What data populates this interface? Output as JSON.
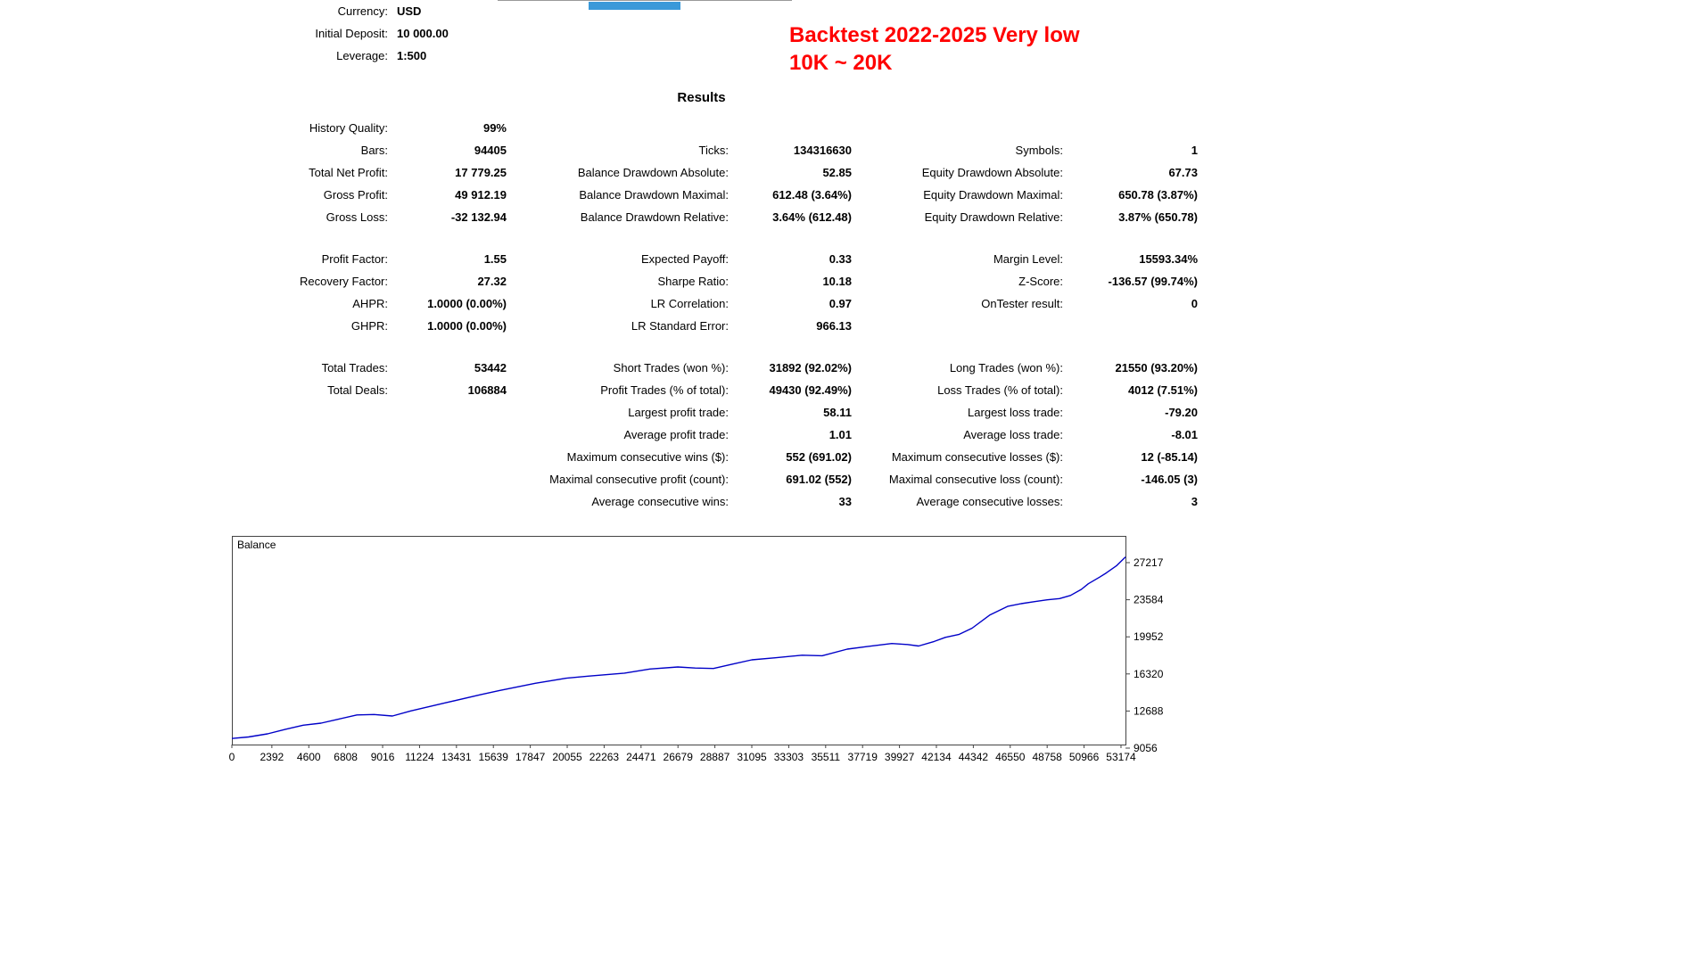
{
  "top_partial_tab": {
    "color": "#3a99d9"
  },
  "annotation": {
    "line1": "Backtest 2022-2025 Very low",
    "line2": "10K ~ 20K",
    "color": "#ff0000"
  },
  "account": {
    "rows": [
      {
        "label": "Currency:",
        "value": "USD"
      },
      {
        "label": "Initial Deposit:",
        "value": "10 000.00"
      },
      {
        "label": "Leverage:",
        "value": "1:500"
      }
    ]
  },
  "results": {
    "title": "Results",
    "rows": [
      [
        "History Quality:",
        "99%",
        "",
        "",
        "",
        ""
      ],
      [
        "Bars:",
        "94405",
        "Ticks:",
        "134316630",
        "Symbols:",
        "1"
      ],
      [
        "Total Net Profit:",
        "17 779.25",
        "Balance Drawdown Absolute:",
        "52.85",
        "Equity Drawdown Absolute:",
        "67.73"
      ],
      [
        "Gross Profit:",
        "49 912.19",
        "Balance Drawdown Maximal:",
        "612.48 (3.64%)",
        "Equity Drawdown Maximal:",
        "650.78 (3.87%)"
      ],
      [
        "Gross Loss:",
        "-32 132.94",
        "Balance Drawdown Relative:",
        "3.64% (612.48)",
        "Equity Drawdown Relative:",
        "3.87% (650.78)"
      ],
      "spacer",
      [
        "Profit Factor:",
        "1.55",
        "Expected Payoff:",
        "0.33",
        "Margin Level:",
        "15593.34%"
      ],
      [
        "Recovery Factor:",
        "27.32",
        "Sharpe Ratio:",
        "10.18",
        "Z-Score:",
        "-136.57 (99.74%)"
      ],
      [
        "AHPR:",
        "1.0000 (0.00%)",
        "LR Correlation:",
        "0.97",
        "OnTester result:",
        "0"
      ],
      [
        "GHPR:",
        "1.0000 (0.00%)",
        "LR Standard Error:",
        "966.13",
        "",
        ""
      ],
      "spacer",
      [
        "Total Trades:",
        "53442",
        "Short Trades (won %):",
        "31892 (92.02%)",
        "Long Trades (won %):",
        "21550 (93.20%)"
      ],
      [
        "Total Deals:",
        "106884",
        "Profit Trades (% of total):",
        "49430 (92.49%)",
        "Loss Trades (% of total):",
        "4012 (7.51%)"
      ],
      [
        "",
        "",
        "Largest profit trade:",
        "58.11",
        "Largest loss trade:",
        "-79.20"
      ],
      [
        "",
        "",
        "Average profit trade:",
        "1.01",
        "Average loss trade:",
        "-8.01"
      ],
      [
        "",
        "",
        "Maximum consecutive wins ($):",
        "552 (691.02)",
        "Maximum consecutive losses ($):",
        "12 (-85.14)"
      ],
      [
        "",
        "",
        "Maximal consecutive profit (count):",
        "691.02 (552)",
        "Maximal consecutive loss (count):",
        "-146.05 (3)"
      ],
      [
        "",
        "",
        "Average consecutive wins:",
        "33",
        "Average consecutive losses:",
        "3"
      ]
    ]
  },
  "chart_data": {
    "type": "line",
    "title": "Balance",
    "legend": "Balance",
    "xlim": [
      0,
      53442
    ],
    "y_ticks": [
      27217,
      23584,
      19952,
      16320,
      12688,
      9056
    ],
    "x_ticks": [
      0,
      2392,
      4600,
      6808,
      9016,
      11224,
      13431,
      15639,
      17847,
      20055,
      22263,
      24471,
      26679,
      28887,
      31095,
      33303,
      35511,
      37719,
      39927,
      42134,
      44342,
      46550,
      48758,
      50966,
      53174
    ],
    "ylim_map": {
      "top_value": 27217,
      "top_y": 30,
      "bottom_value": 9056,
      "bottom_y": 238
    },
    "series": [
      {
        "name": "Balance",
        "color": "#0000c8",
        "points": [
          [
            0,
            10000
          ],
          [
            1000,
            10150
          ],
          [
            2134,
            10450
          ],
          [
            3200,
            10900
          ],
          [
            4267,
            11300
          ],
          [
            5334,
            11500
          ],
          [
            6400,
            11900
          ],
          [
            7480,
            12300
          ],
          [
            8500,
            12350
          ],
          [
            9600,
            12200
          ],
          [
            10700,
            12700
          ],
          [
            12800,
            13500
          ],
          [
            14900,
            14300
          ],
          [
            16000,
            14700
          ],
          [
            18144,
            15400
          ],
          [
            20000,
            15900
          ],
          [
            21300,
            16100
          ],
          [
            23478,
            16400
          ],
          [
            25000,
            16800
          ],
          [
            26679,
            17000
          ],
          [
            27700,
            16900
          ],
          [
            28800,
            16850
          ],
          [
            30000,
            17300
          ],
          [
            31095,
            17700
          ],
          [
            32500,
            17900
          ],
          [
            34100,
            18150
          ],
          [
            35300,
            18100
          ],
          [
            36800,
            18750
          ],
          [
            38000,
            19000
          ],
          [
            39470,
            19300
          ],
          [
            40400,
            19200
          ],
          [
            41070,
            19050
          ],
          [
            42000,
            19500
          ],
          [
            42670,
            19900
          ],
          [
            43500,
            20200
          ],
          [
            44270,
            20800
          ],
          [
            45340,
            22100
          ],
          [
            46410,
            22950
          ],
          [
            47200,
            23200
          ],
          [
            48010,
            23400
          ],
          [
            48758,
            23580
          ],
          [
            49500,
            23700
          ],
          [
            50150,
            24000
          ],
          [
            50800,
            24600
          ],
          [
            51220,
            25150
          ],
          [
            51900,
            25800
          ],
          [
            52290,
            26200
          ],
          [
            52900,
            26900
          ],
          [
            53442,
            27779
          ]
        ]
      }
    ]
  }
}
